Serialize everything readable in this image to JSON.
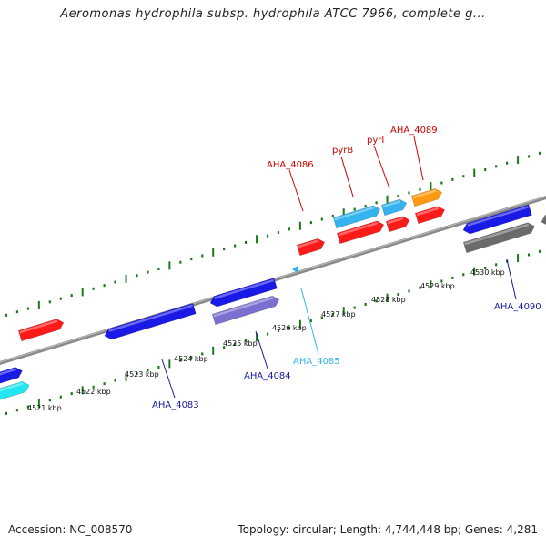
{
  "title": "Aeromonas hydrophila subsp. hydrophila ATCC 7966, complete g...",
  "footer": {
    "accession": "Accession: NC_008570",
    "topology": "Topology: circular; Length: 4,744,448 bp; Genes: 4,281"
  },
  "colors": {
    "red": "#ff1a1a",
    "blue": "#1a1ae6",
    "sky": "#33b3f0",
    "purple": "#7a70d0",
    "orange": "#ff9a10",
    "grey": "#6a6a6a",
    "cyan": "#22e6f0",
    "backbone": "#8a8a8a",
    "tick": "#1a7a1a",
    "label_red": "#cc0000",
    "label_blue": "#1a1aa0",
    "label_sky": "#33b3f0"
  },
  "scale_labels": [
    "4521 kbp",
    "4522 kbp",
    "4523 kbp",
    "4524 kbp",
    "4525 kbp",
    "4526 kbp",
    "4527 kbp",
    "4528 kbp",
    "4529 kbp",
    "4530 kbp"
  ],
  "gene_labels": [
    {
      "id": "aha4086",
      "text": "AHA_4086",
      "color": "label_red"
    },
    {
      "id": "pyrB",
      "text": "pyrB",
      "color": "label_red"
    },
    {
      "id": "pyrI",
      "text": "pyrI",
      "color": "label_red"
    },
    {
      "id": "aha4089",
      "text": "AHA_4089",
      "color": "label_red"
    },
    {
      "id": "aha4090",
      "text": "AHA_4090",
      "color": "label_blue"
    },
    {
      "id": "aha4085",
      "text": "AHA_4085",
      "color": "label_sky"
    },
    {
      "id": "aha4084",
      "text": "AHA_4084",
      "color": "label_blue"
    },
    {
      "id": "aha4083",
      "text": "AHA_4083",
      "color": "label_blue"
    }
  ]
}
